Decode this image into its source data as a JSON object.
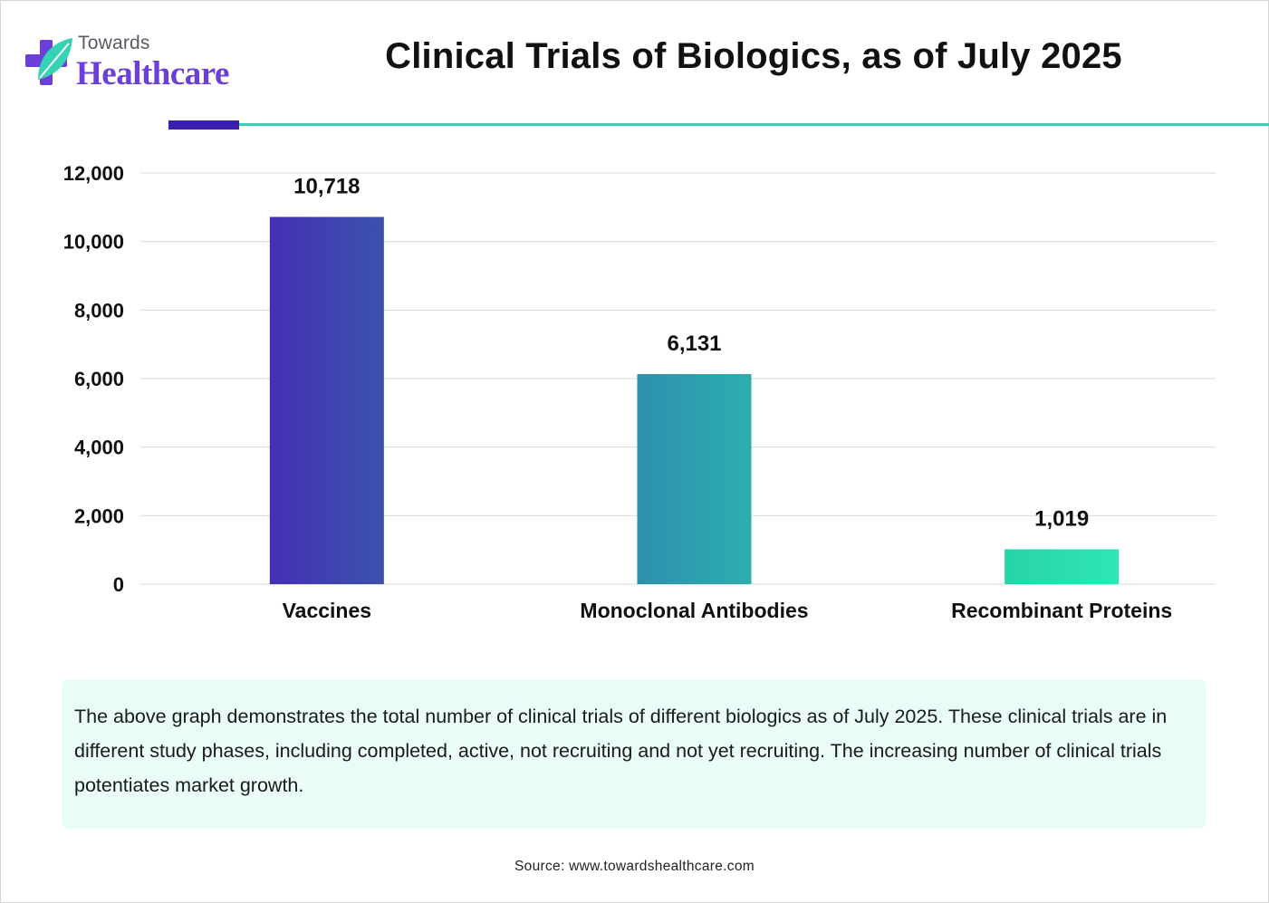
{
  "brand": {
    "top": "Towards",
    "bottom": "Healthcare",
    "accent": "#6d3fd9",
    "leaf": "#35d3b3"
  },
  "header": {
    "title": "Clinical Trials of Biologics, as of July 2025",
    "accent_color": "#3b1fb0",
    "line_color": "#3ccfb2"
  },
  "chart_data": {
    "type": "bar",
    "title": "Clinical Trials of Biologics, as of July 2025",
    "categories": [
      "Vaccines",
      "Monoclonal Antibodies",
      "Recombinant Proteins"
    ],
    "values": [
      10718,
      6131,
      1019
    ],
    "value_labels": [
      "10,718",
      "6,131",
      "1,019"
    ],
    "bar_colors": [
      [
        "#4530b4",
        "#3b52ad"
      ],
      [
        "#2e8fae",
        "#2caeae"
      ],
      [
        "#28d3a8",
        "#2ee6b8"
      ]
    ],
    "xlabel": "",
    "ylabel": "",
    "ylim": [
      0,
      12000
    ],
    "yticks": [
      0,
      2000,
      4000,
      6000,
      8000,
      10000,
      12000
    ],
    "ytick_labels": [
      "0",
      "2,000",
      "4,000",
      "6,000",
      "8,000",
      "10,000",
      "12,000"
    ],
    "grid": true,
    "legend": "none"
  },
  "note": {
    "text": "The above graph demonstrates the total number of clinical trials of different biologics as of July 2025. These clinical trials are in different study phases, including completed, active, not recruiting and not yet recruiting. The increasing number of clinical trials potentiates market growth."
  },
  "source": "Source: www.towardshealthcare.com"
}
